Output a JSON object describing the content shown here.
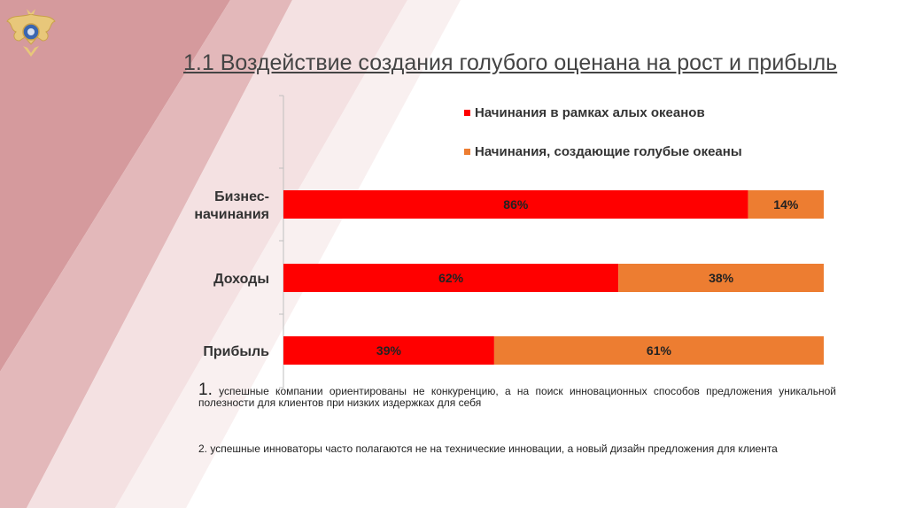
{
  "slide": {
    "title": "1.1 Воздействие создания голубого  оценана на рост и прибыль",
    "notes": [
      {
        "number": "1.",
        "text": "успешные компании ориентированы не конкуренцию, а на поиск инновационных способов предложения уникальной полезности для клиентов при низких издержках для себя"
      },
      {
        "number": "2.",
        "text": "успешные инноваторы часто полагаются не на технические инновации, а новый дизайн предложения для клиента"
      }
    ],
    "theme": {
      "background_stripe": "#d9a2a4",
      "stripe_light": "#eed3d4"
    },
    "emblem_icon": "eagle-emblem-icon"
  },
  "chart_data": {
    "type": "bar",
    "orientation": "horizontal",
    "stacked": true,
    "categories": [
      "Бизнес-начинания",
      "Доходы",
      "Прибыль"
    ],
    "series": [
      {
        "name": "Начинания в рамках алых океанов",
        "color": "#ff0000",
        "values": [
          86,
          62,
          39
        ],
        "labels": [
          "86%",
          "62%",
          "39%"
        ]
      },
      {
        "name": "Начинания, создающие голубые океаны",
        "color": "#ed7d31",
        "values": [
          14,
          38,
          61
        ],
        "labels": [
          "14%",
          "38%",
          "61%"
        ]
      }
    ],
    "xlim": [
      0,
      100
    ],
    "unit": "%",
    "legend_position": "top",
    "grid": false
  }
}
